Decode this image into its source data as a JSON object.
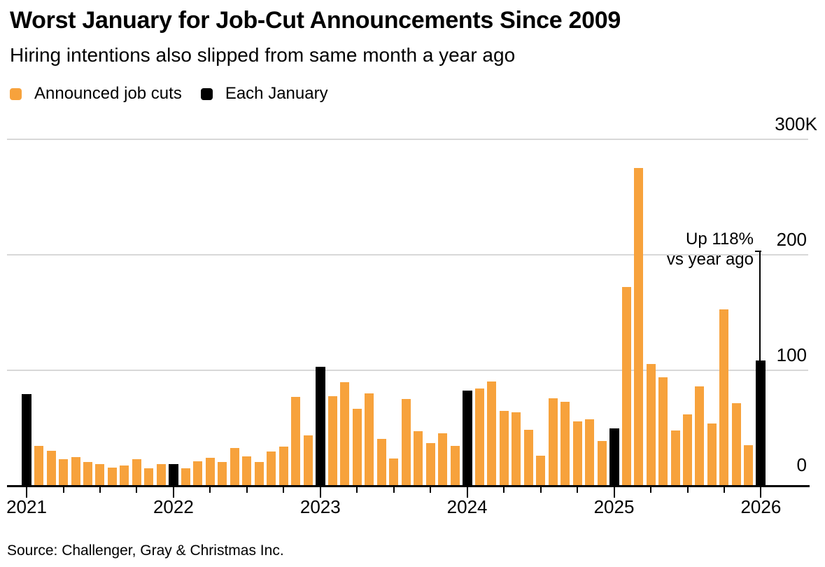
{
  "title": "Worst January for Job-Cut Announcements Since 2009",
  "subtitle": "Hiring intentions also slipped from same month a year ago",
  "legend": {
    "items": [
      {
        "label": "Announced job cuts",
        "color": "#F7A23C"
      },
      {
        "label": "Each January",
        "color": "#000000"
      }
    ]
  },
  "annotation": {
    "line1": "Up 118%",
    "line2": "vs year ago"
  },
  "source": "Source: Challenger, Gray & Christmas Inc.",
  "colors": {
    "bar": "#F7A23C",
    "january_bar": "#000000",
    "gridline": "#D8D8D8",
    "axis": "#000000",
    "text": "#000000"
  },
  "chart_data": {
    "type": "bar",
    "title": "Worst January for Job-Cut Announcements Since 2009",
    "subtitle": "Hiring intentions also slipped from same month a year ago",
    "unit": "thousands of announced job cuts",
    "start_month": "2021-01",
    "end_month": "2026-01",
    "values": [
      79.6,
      34.5,
      30.6,
      22.9,
      24.6,
      20.5,
      18.9,
      15.7,
      17.9,
      22.8,
      14.9,
      19.1,
      19.1,
      15.2,
      21.4,
      24.3,
      20.7,
      32.5,
      25.8,
      20.5,
      29.9,
      33.8,
      76.8,
      43.7,
      102.9,
      77.8,
      89.7,
      66.9,
      80.1,
      40.7,
      23.7,
      75.2,
      47.5,
      36.8,
      45.5,
      34.8,
      82.3,
      84.6,
      90.3,
      64.8,
      63.8,
      48.8,
      25.9,
      75.9,
      72.8,
      55.6,
      57.7,
      38.8,
      49.8,
      172.0,
      275.2,
      105.4,
      93.8,
      48.0,
      62.1,
      85.9,
      54.1,
      153.1,
      71.3,
      35.0,
      108.6
    ],
    "series": [
      {
        "name": "Announced job cuts",
        "color": "#F7A23C",
        "note": "all months except January"
      },
      {
        "name": "Each January",
        "color": "#000000",
        "note": "values at indices 0, 12, 24, 36, 48, 60"
      }
    ],
    "y_axis": {
      "min": 0,
      "max": 300,
      "ticks": [
        {
          "value": 0,
          "label": "0"
        },
        {
          "value": 100,
          "label": "100"
        },
        {
          "value": 200,
          "label": "200"
        },
        {
          "value": 300,
          "label": "300K"
        }
      ]
    },
    "x_axis": {
      "year_labels": [
        "2021",
        "2022",
        "2023",
        "2024",
        "2025",
        "2026"
      ]
    },
    "annotation": {
      "text": "Up 118% vs year ago",
      "target_month": "2026-01",
      "target_value": 108.6
    },
    "legend_position": "top-left",
    "grid": "horizontal"
  }
}
